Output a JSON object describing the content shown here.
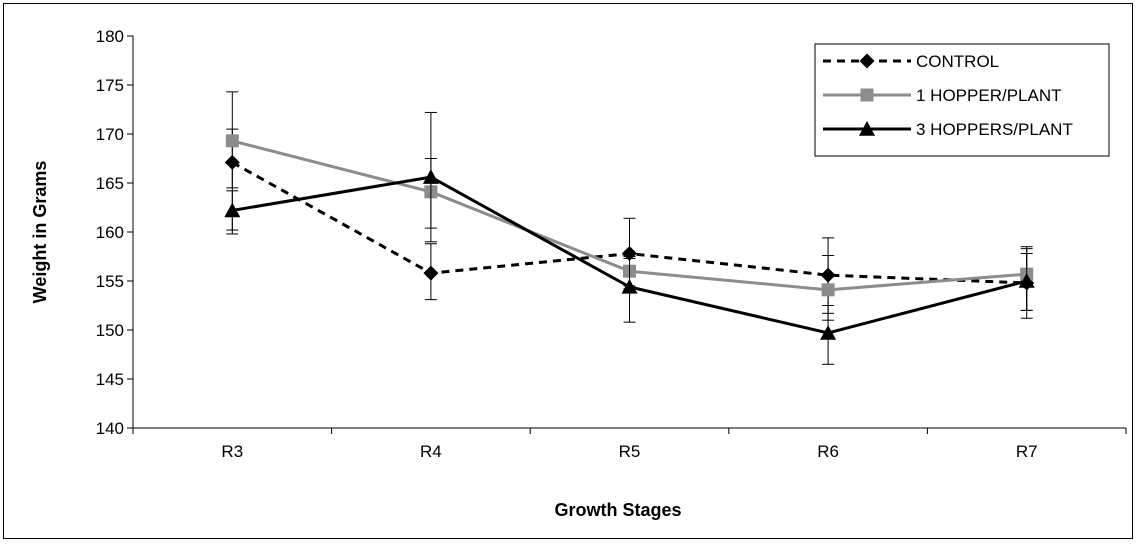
{
  "chart_data": {
    "type": "line",
    "title": "",
    "xlabel": "Growth Stages",
    "ylabel": "Weight in Grams",
    "categories": [
      "R3",
      "R4",
      "R5",
      "R6",
      "R7"
    ],
    "ylim": [
      140,
      180
    ],
    "yticks": [
      140,
      145,
      150,
      155,
      160,
      165,
      170,
      175,
      180
    ],
    "grid": false,
    "legend_position": "top-right",
    "series": [
      {
        "name": "CONTROL",
        "values": [
          167.1,
          155.8,
          157.8,
          155.6,
          154.8
        ],
        "error_high": [
          174.3,
          158.8,
          161.4,
          159.4,
          158.5
        ],
        "error_low": [
          159.8,
          153.1,
          154.2,
          151.7,
          151.2
        ],
        "color": "#000000",
        "line_style": "dashed",
        "marker": "diamond"
      },
      {
        "name": "1 HOPPER/PLANT",
        "values": [
          169.3,
          164.1,
          156.0,
          154.1,
          155.7
        ],
        "error_high": [
          170.5,
          167.5,
          157.3,
          157.6,
          158.3
        ],
        "error_low": [
          164.5,
          159.0,
          154.5,
          151.0,
          152.0
        ],
        "color": "#8c8c8c",
        "line_style": "solid",
        "marker": "square"
      },
      {
        "name": "3 HOPPERS/PLANT",
        "values": [
          162.2,
          165.6,
          154.4,
          149.7,
          155.0
        ],
        "error_high": [
          164.2,
          172.2,
          157.5,
          152.5,
          157.8
        ],
        "error_low": [
          160.2,
          160.4,
          150.8,
          146.5,
          152.0
        ],
        "color": "#000000",
        "line_style": "solid",
        "marker": "triangle"
      }
    ]
  }
}
